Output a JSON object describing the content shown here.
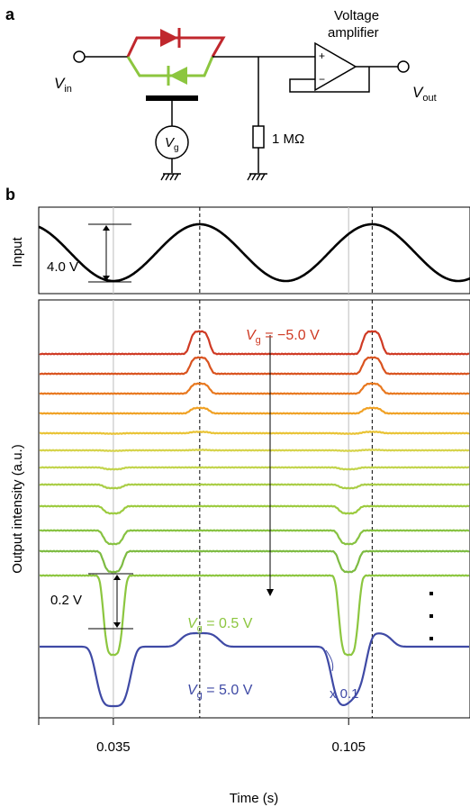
{
  "panel_a": {
    "label": "a",
    "vin_main": "V",
    "vin_sub": "in",
    "vout_main": "V",
    "vout_sub": "out",
    "vg_main": "V",
    "vg_sub": "g",
    "resistor_label": "1 MΩ",
    "amp_label_line1": "Voltage",
    "amp_label_line2": "amplifier",
    "amp_plus": "+",
    "amp_minus": "−",
    "colors": {
      "diode_red": "#c0272d",
      "diode_green": "#8cc63f"
    }
  },
  "panel_b": {
    "label": "b"
  },
  "chart_data": [
    {
      "type": "line",
      "ylabel": "Input",
      "xlim": [
        0.0128,
        0.1411
      ],
      "series": [
        {
          "kind": "sine",
          "amplitude": 4.0,
          "min_at": 0.035,
          "period": 0.0513,
          "color": "#000000"
        }
      ],
      "annotations": [
        {
          "text": "4.0 V",
          "span": "peak-to-peak"
        }
      ]
    },
    {
      "type": "line",
      "xlabel": "Time (s)",
      "ylabel": "Output intensity (a.u.)",
      "xlim": [
        0.0128,
        0.1411
      ],
      "x_ticks": [
        0.035,
        0.105
      ],
      "x_tick_labels": [
        "0.035",
        "0.105"
      ],
      "gridlines_solid_at": [
        0.035,
        0.105
      ],
      "gridlines_dashed_at": [
        0.0607,
        0.112
      ],
      "series": [
        {
          "vg": -5.0,
          "color": "#cf3a24",
          "up": 25,
          "down": 0
        },
        {
          "vg": -4.5,
          "color": "#d9531f",
          "up": 18,
          "down": 0
        },
        {
          "vg": -4.0,
          "color": "#e8781f",
          "up": 11,
          "down": 0
        },
        {
          "vg": -3.5,
          "color": "#f0a124",
          "up": 6,
          "down": 0
        },
        {
          "vg": -3.0,
          "color": "#e9c335",
          "up": 1.5,
          "down": 0.5
        },
        {
          "vg": -2.5,
          "color": "#d6d34a",
          "up": 0.5,
          "down": 0.5
        },
        {
          "vg": -2.0,
          "color": "#c2d44b",
          "up": 0,
          "down": 2
        },
        {
          "vg": -1.5,
          "color": "#a9cd45",
          "up": 0,
          "down": 4
        },
        {
          "vg": -1.0,
          "color": "#9ccb3f",
          "up": 0,
          "down": 8
        },
        {
          "vg": -0.5,
          "color": "#87c241",
          "up": 0,
          "down": 15
        },
        {
          "vg": 0.0,
          "color": "#7dbb42",
          "up": 0,
          "down": 23
        },
        {
          "vg": 0.5,
          "color": "#8cc63f",
          "up": 0,
          "down": 88
        },
        {
          "vg": 5.0,
          "color": "#3f4aa5",
          "up": 15,
          "down": 66,
          "scale": "x 0.1"
        }
      ],
      "annotations": [
        {
          "text": "V",
          "sub": "g",
          "value": " = −5.0 V",
          "color": "#cf3a24"
        },
        {
          "text": "V",
          "sub": "g",
          "value": " = 0.5 V",
          "color": "#8cc63f"
        },
        {
          "text": "V",
          "sub": "g",
          "value": " = 5.0 V",
          "color": "#3f4aa5"
        },
        {
          "text": "x 0.1",
          "color": "#3f4aa5"
        },
        {
          "text": "0.2 V",
          "color": "#000000"
        }
      ]
    }
  ]
}
